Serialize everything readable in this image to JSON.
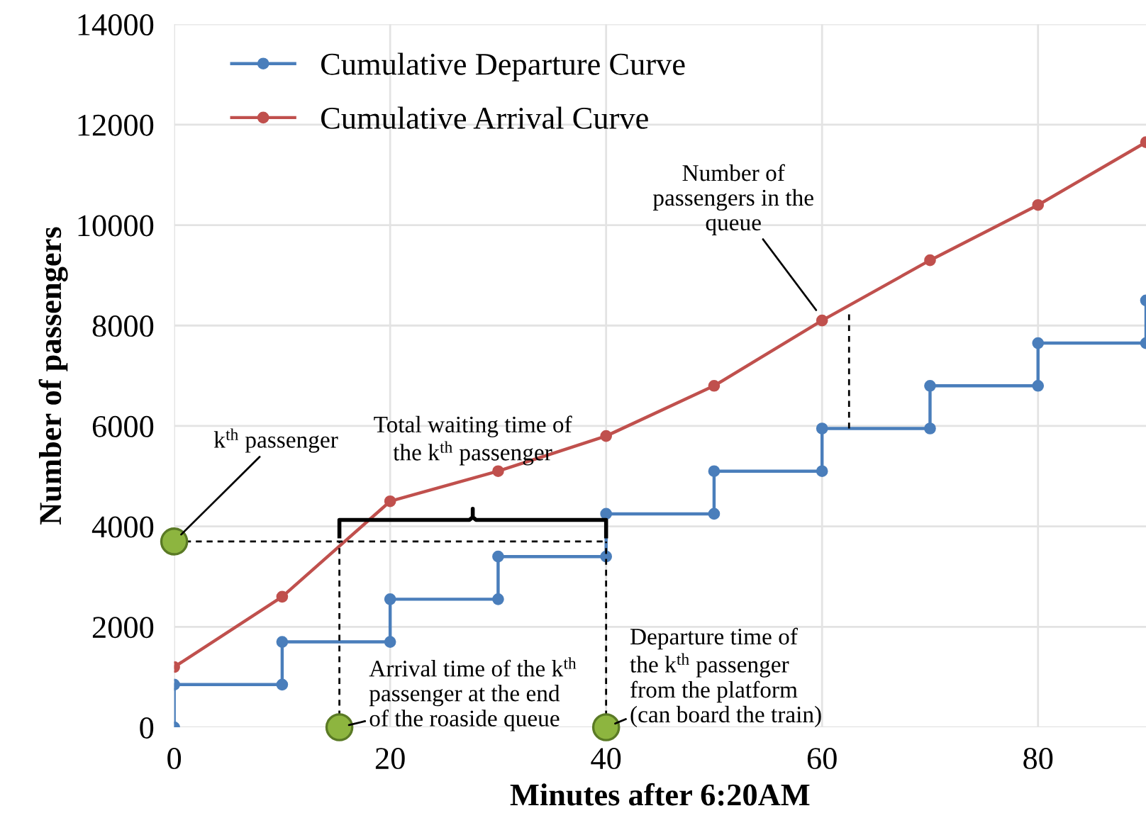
{
  "chart_data": {
    "type": "line",
    "xlabel": "Minutes after 6:20AM",
    "ylabel": "Number of passengers",
    "xlim": [
      0,
      90
    ],
    "xticks": [
      0,
      20,
      40,
      60,
      80
    ],
    "ylim": [
      0,
      14000
    ],
    "yticks": [
      0,
      2000,
      4000,
      6000,
      8000,
      10000,
      12000,
      14000
    ],
    "grid": true,
    "legend": "top left",
    "marker": "circle",
    "series": [
      {
        "name": "Cumulative Departure Curve",
        "color": "#4a7ebb",
        "x": [
          0,
          0,
          10,
          10,
          20,
          20,
          30,
          30,
          40,
          40,
          50,
          50,
          60,
          60,
          70,
          70,
          80,
          80,
          90,
          90
        ],
        "values": [
          0,
          850,
          850,
          1700,
          1700,
          2550,
          2550,
          3400,
          3400,
          4250,
          4250,
          5100,
          5100,
          5950,
          5950,
          6800,
          6800,
          7650,
          7650,
          8500
        ]
      },
      {
        "name": "Cumulative Arrival Curve",
        "color": "#c0504d",
        "x": [
          0,
          10,
          20,
          30,
          40,
          50,
          60,
          70,
          80,
          90
        ],
        "values": [
          1200,
          2600,
          4500,
          5100,
          5800,
          6800,
          8100,
          9300,
          10400,
          11650
        ]
      },
      {
        "type": "line",
        "color": "#000000",
        "line_style": "dashed",
        "marker": "none",
        "x": [
          0,
          40
        ],
        "values": [
          3700,
          3700
        ]
      },
      {
        "type": "line",
        "color": "#000000",
        "line_style": "dashed",
        "marker": "none",
        "x": [
          15.3,
          15.3
        ],
        "values": [
          0,
          3700
        ]
      },
      {
        "type": "line",
        "color": "#000000",
        "line_style": "dashed",
        "marker": "none",
        "x": [
          40,
          40
        ],
        "values": [
          0,
          3700
        ]
      },
      {
        "type": "line",
        "color": "#000000",
        "line_style": "dashed",
        "marker": "none",
        "x": [
          62.5,
          62.5
        ],
        "values": [
          5950,
          8250
        ]
      },
      {
        "type": "scatter",
        "color": "#8db53f",
        "x": [
          0,
          15.3,
          40
        ],
        "values": [
          3700,
          0,
          0
        ]
      }
    ],
    "annotations": [
      "Total waiting time of\nthe k$^{th}$ passenger",
      {
        "text": "k$^{th}$ passenger",
        "x": 0,
        "y": 3700
      },
      {
        "text": "Arrival time of the k$^{th}$\npassenger at the end\nof the roaside queue",
        "x": 15.3,
        "y": 0
      },
      {
        "text": "Departure time of\nthe k$^{th}$ passenger\nfrom the platform\n(can board the train)",
        "x": 40,
        "y": 0
      },
      {
        "text": "Number of\npassengers in the\nqueue",
        "x": 60,
        "y": 8150
      }
    ]
  }
}
